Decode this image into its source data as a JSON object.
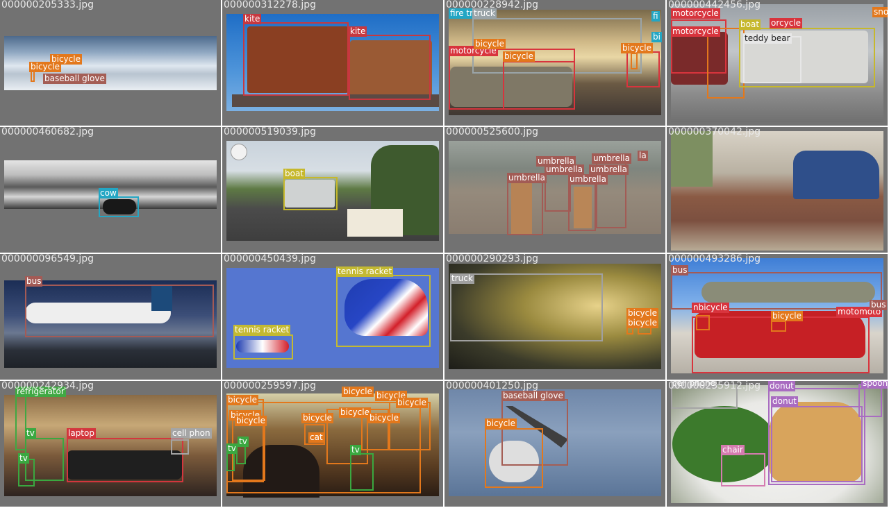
{
  "colors": {
    "bicycle": "#e3781c",
    "kite": "#c7383f",
    "baseball_glove": "#a45e55",
    "fire_truck": "#9aa4a8",
    "motorcycle": "#d8343d",
    "boat": "#c6b82c",
    "teddy_bear": "#e7e7e7",
    "cow": "#23a6c4",
    "umbrella": "#a25b55",
    "bus": "#a45a55",
    "tennis_racket": "#c3b932",
    "truck": "#a0a0a0",
    "refrigerator": "#40a843",
    "tv": "#3aa840",
    "laptop": "#d3363d",
    "cell_phone": "#a5a5a5",
    "cat": "#e3781c",
    "donut": "#a96cc1",
    "chair": "#d57bb0",
    "spoon": "#a96cc1"
  },
  "tiles": [
    {
      "filename": "000000205333.jpg",
      "labels": [
        "bicycle",
        "bicycle",
        "baseball glove"
      ]
    },
    {
      "filename": "000000312278.jpg",
      "labels": [
        "kite",
        "kite"
      ]
    },
    {
      "filename": "000000228942.jpg",
      "labels": [
        "fire truck",
        "truck",
        "motorcycle",
        "bicycle",
        "bicycle",
        "bicycle",
        "fi",
        "bi"
      ]
    },
    {
      "filename": "000000442456.jpg",
      "labels": [
        "motorcycle",
        "motorcycle",
        "boat",
        "orcycle",
        "teddy bear",
        "sno"
      ]
    },
    {
      "filename": "000000460682.jpg",
      "labels": [
        "cow"
      ]
    },
    {
      "filename": "000000519039.jpg",
      "labels": [
        "boat"
      ]
    },
    {
      "filename": "000000525600.jpg",
      "labels": [
        "umbrella",
        "umbrella",
        "umbrella",
        "umbrella",
        "umbrella",
        "umbrella",
        "la"
      ]
    },
    {
      "filename": "000000370042.jpg",
      "labels": []
    },
    {
      "filename": "000000096549.jpg",
      "labels": [
        "bus"
      ]
    },
    {
      "filename": "000000450439.jpg",
      "labels": [
        "tennis racket",
        "tennis racket"
      ]
    },
    {
      "filename": "000000290293.jpg",
      "labels": [
        "truck",
        "bicycle",
        "bicycle"
      ]
    },
    {
      "filename": "000000493286.jpg",
      "labels": [
        "bus",
        "nbicycle",
        "bicycle",
        "motomoto",
        "bus"
      ]
    },
    {
      "filename": "000000242934.jpg",
      "labels": [
        "refrigerator",
        "tv",
        "laptop",
        "cell phon",
        "tv"
      ]
    },
    {
      "filename": "000000259597.jpg",
      "labels": [
        "bicycle",
        "bicycle",
        "bicycle",
        "bicycle",
        "bicycle",
        "bicycle",
        "bicycle",
        "bicycle",
        "bicycle",
        "cat",
        "tv",
        "tv",
        "tv"
      ]
    },
    {
      "filename": "000000401250.jpg",
      "labels": [
        "baseball glove",
        "bicycle"
      ]
    },
    {
      "filename": "000000235912.jpg",
      "labels": [
        "cell phone",
        "donut",
        "donut",
        "chair",
        "spoon"
      ]
    }
  ]
}
